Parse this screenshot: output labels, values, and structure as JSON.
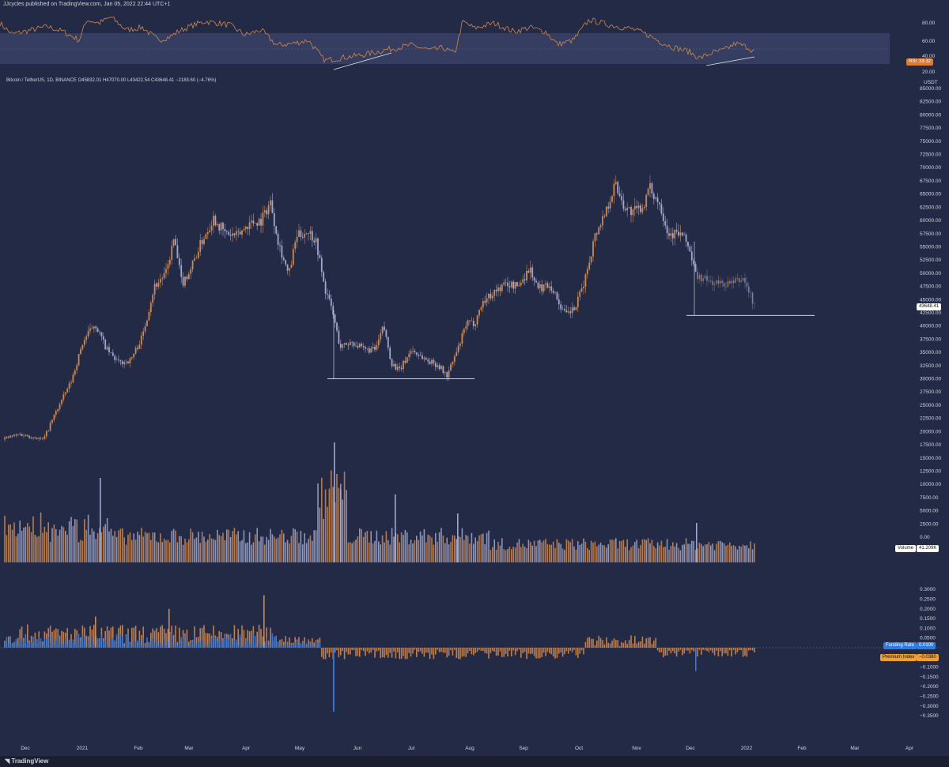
{
  "header": {
    "publisher": "JJcycles published on TradingView.com, Jan 05, 2022 22:44 UTC+1"
  },
  "symbol_line": "Bitcoin / TetherUS, 1D, BINANCE  O45832.01  H47070.00  L43422.54  C43648.41  −2183.60 (−4.76%)",
  "currency": "USDT",
  "footer": {
    "logo": "TradingView"
  },
  "tags": {
    "rsi_label": "RSI",
    "rsi_value": "33.32",
    "price_value": "43648.41",
    "volume_label": "Volume",
    "volume_value": "41.209K",
    "funding_label": "Funding Rate",
    "funding_value": "0.0100",
    "premium_label": "Premium Index",
    "premium_value": "−0.0380"
  },
  "colors": {
    "background": "#232a46",
    "orange": "#d2884a",
    "blue_grey": "#9fa8cf",
    "funding_blue": "#2f7be6",
    "rsi_band": "#3a4366",
    "text": "#d1d4dc"
  },
  "chart_data": [
    {
      "type": "line",
      "name": "RSI",
      "y_ticks": [
        "80.00",
        "60.00",
        "40.00",
        "20.00"
      ],
      "ylim": [
        20,
        85
      ],
      "band": [
        30,
        70
      ],
      "keypoints": [
        [
          0,
          68
        ],
        [
          15,
          55
        ],
        [
          40,
          60
        ],
        [
          60,
          64
        ],
        [
          80,
          58
        ],
        [
          100,
          48
        ],
        [
          110,
          72
        ],
        [
          125,
          68
        ],
        [
          140,
          75
        ],
        [
          160,
          60
        ],
        [
          180,
          63
        ],
        [
          200,
          48
        ],
        [
          215,
          52
        ],
        [
          225,
          58
        ],
        [
          245,
          66
        ],
        [
          260,
          70
        ],
        [
          290,
          66
        ],
        [
          310,
          54
        ],
        [
          330,
          60
        ],
        [
          350,
          42
        ],
        [
          370,
          44
        ],
        [
          390,
          48
        ],
        [
          410,
          24
        ],
        [
          430,
          27
        ],
        [
          460,
          31
        ],
        [
          490,
          37
        ],
        [
          520,
          42
        ],
        [
          545,
          36
        ],
        [
          560,
          39
        ],
        [
          575,
          32
        ],
        [
          585,
          70
        ],
        [
          600,
          62
        ],
        [
          625,
          68
        ],
        [
          650,
          58
        ],
        [
          670,
          63
        ],
        [
          690,
          58
        ],
        [
          705,
          43
        ],
        [
          725,
          48
        ],
        [
          745,
          72
        ],
        [
          770,
          66
        ],
        [
          800,
          61
        ],
        [
          820,
          54
        ],
        [
          835,
          46
        ],
        [
          850,
          40
        ],
        [
          870,
          35
        ],
        [
          885,
          27
        ],
        [
          900,
          33
        ],
        [
          915,
          36
        ],
        [
          930,
          44
        ],
        [
          945,
          40
        ],
        [
          955,
          34
        ]
      ],
      "trendlines": [
        [
          [
            422,
            88
          ],
          [
            495,
            67
          ]
        ],
        [
          [
            893,
            83
          ],
          [
            954,
            72
          ]
        ]
      ],
      "last": 33.32
    },
    {
      "type": "candlestick",
      "name": "Bitcoin / TetherUS",
      "y_ticks": [
        "85000.00",
        "82500.00",
        "80000.00",
        "77500.00",
        "75000.00",
        "72500.00",
        "70000.00",
        "67500.00",
        "65000.00",
        "62500.00",
        "60000.00",
        "57500.00",
        "55000.00",
        "52500.00",
        "50000.00",
        "47500.00",
        "45000.00",
        "42500.00",
        "40000.00",
        "37500.00",
        "35000.00",
        "32500.00",
        "30000.00",
        "27500.00",
        "25000.00",
        "22500.00",
        "20000.00",
        "17500.00",
        "15000.00",
        "12500.00",
        "10000.00",
        "7500.00",
        "5000.00",
        "2500.00",
        "0.00"
      ],
      "ylim": [
        0,
        85000
      ],
      "x_ticks": [
        "Dec",
        "2021",
        "Feb",
        "Mar",
        "Apr",
        "May",
        "Jun",
        "Jul",
        "Aug",
        "Sep",
        "Oct",
        "Nov",
        "Dec",
        "2022",
        "Feb",
        "Mar",
        "Apr"
      ],
      "keypoints": [
        [
          0,
          18500
        ],
        [
          25,
          19500
        ],
        [
          55,
          18500
        ],
        [
          70,
          23500
        ],
        [
          90,
          29500
        ],
        [
          105,
          37000
        ],
        [
          120,
          40500
        ],
        [
          135,
          35500
        ],
        [
          150,
          33000
        ],
        [
          165,
          33500
        ],
        [
          180,
          38000
        ],
        [
          195,
          47500
        ],
        [
          210,
          50000
        ],
        [
          220,
          56500
        ],
        [
          230,
          48000
        ],
        [
          240,
          50500
        ],
        [
          255,
          56000
        ],
        [
          270,
          60500
        ],
        [
          285,
          57500
        ],
        [
          300,
          57000
        ],
        [
          315,
          59500
        ],
        [
          330,
          60000
        ],
        [
          342,
          63500
        ],
        [
          352,
          56000
        ],
        [
          365,
          49500
        ],
        [
          375,
          57000
        ],
        [
          390,
          58000
        ],
        [
          400,
          56000
        ],
        [
          410,
          47500
        ],
        [
          420,
          43000
        ],
        [
          430,
          36000
        ],
        [
          445,
          37000
        ],
        [
          460,
          35500
        ],
        [
          475,
          35500
        ],
        [
          485,
          40000
        ],
        [
          495,
          33000
        ],
        [
          505,
          31500
        ],
        [
          520,
          35500
        ],
        [
          540,
          33500
        ],
        [
          555,
          32500
        ],
        [
          565,
          30500
        ],
        [
          580,
          36000
        ],
        [
          590,
          40500
        ],
        [
          600,
          40500
        ],
        [
          610,
          44500
        ],
        [
          625,
          46500
        ],
        [
          640,
          48000
        ],
        [
          655,
          47500
        ],
        [
          670,
          51000
        ],
        [
          680,
          47000
        ],
        [
          695,
          48000
        ],
        [
          705,
          45000
        ],
        [
          715,
          42000
        ],
        [
          728,
          43500
        ],
        [
          740,
          49000
        ],
        [
          752,
          57000
        ],
        [
          765,
          61500
        ],
        [
          778,
          67000
        ],
        [
          790,
          62500
        ],
        [
          800,
          61500
        ],
        [
          812,
          62500
        ],
        [
          822,
          66000
        ],
        [
          835,
          63000
        ],
        [
          845,
          57500
        ],
        [
          860,
          57500
        ],
        [
          870,
          55500
        ],
        [
          880,
          49500
        ],
        [
          895,
          48500
        ],
        [
          910,
          48000
        ],
        [
          925,
          48000
        ],
        [
          940,
          49000
        ],
        [
          955,
          43600
        ]
      ],
      "support_lines": [
        [
          [
            414,
            30000
          ],
          [
            600,
            30000
          ]
        ],
        [
          [
            868,
            42000
          ],
          [
            1030,
            42000
          ]
        ]
      ],
      "last": 43648.41
    },
    {
      "type": "bar",
      "name": "Volume",
      "last": "41.209K"
    },
    {
      "type": "bar",
      "name": "Funding Rate / Premium Index",
      "y_ticks": [
        "0.3000",
        "0.2500",
        "0.2000",
        "0.1500",
        "0.1000",
        "0.0500",
        "0.0000",
        "−0.0500",
        "−0.1000",
        "−0.1500",
        "−0.2000",
        "−0.2500",
        "−0.3000",
        "−0.3500"
      ],
      "ylim": [
        -0.35,
        0.3
      ],
      "funding_rate": 0.01,
      "premium_index": -0.038
    }
  ]
}
